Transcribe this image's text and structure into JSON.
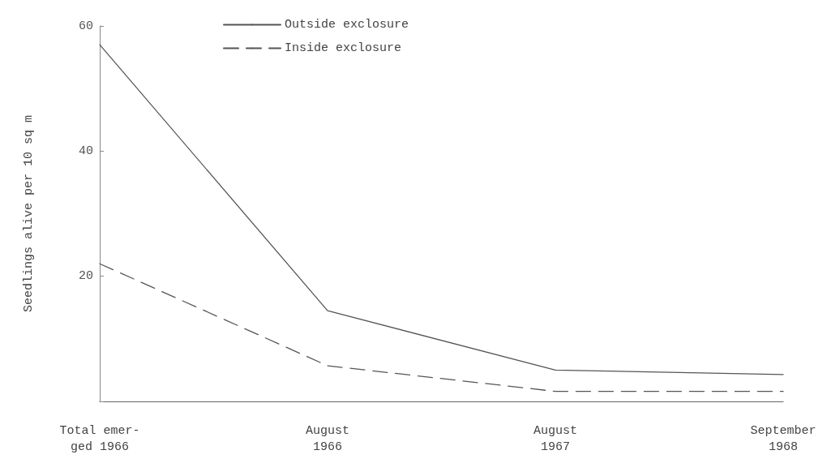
{
  "chart_data": {
    "type": "line",
    "ylabel": "Seedlings alive per 10 sq m",
    "categories": [
      "Total emer-\nged 1966",
      "August\n1966",
      "August\n1967",
      "September\n1968"
    ],
    "series": [
      {
        "name": "Outside exclosure",
        "color": "#555555",
        "line_style": "solid",
        "values": [
          57,
          14.5,
          5,
          4.3
        ]
      },
      {
        "name": "Inside exclosure",
        "color": "#555555",
        "line_style": "dashed",
        "values": [
          22,
          5.7,
          1.6,
          1.6
        ]
      }
    ],
    "ylim": [
      0,
      60
    ],
    "yticks": [
      {
        "value": 0,
        "label": null
      },
      20,
      40,
      60
    ],
    "grid": false,
    "legend": "top left",
    "marker": "none"
  }
}
